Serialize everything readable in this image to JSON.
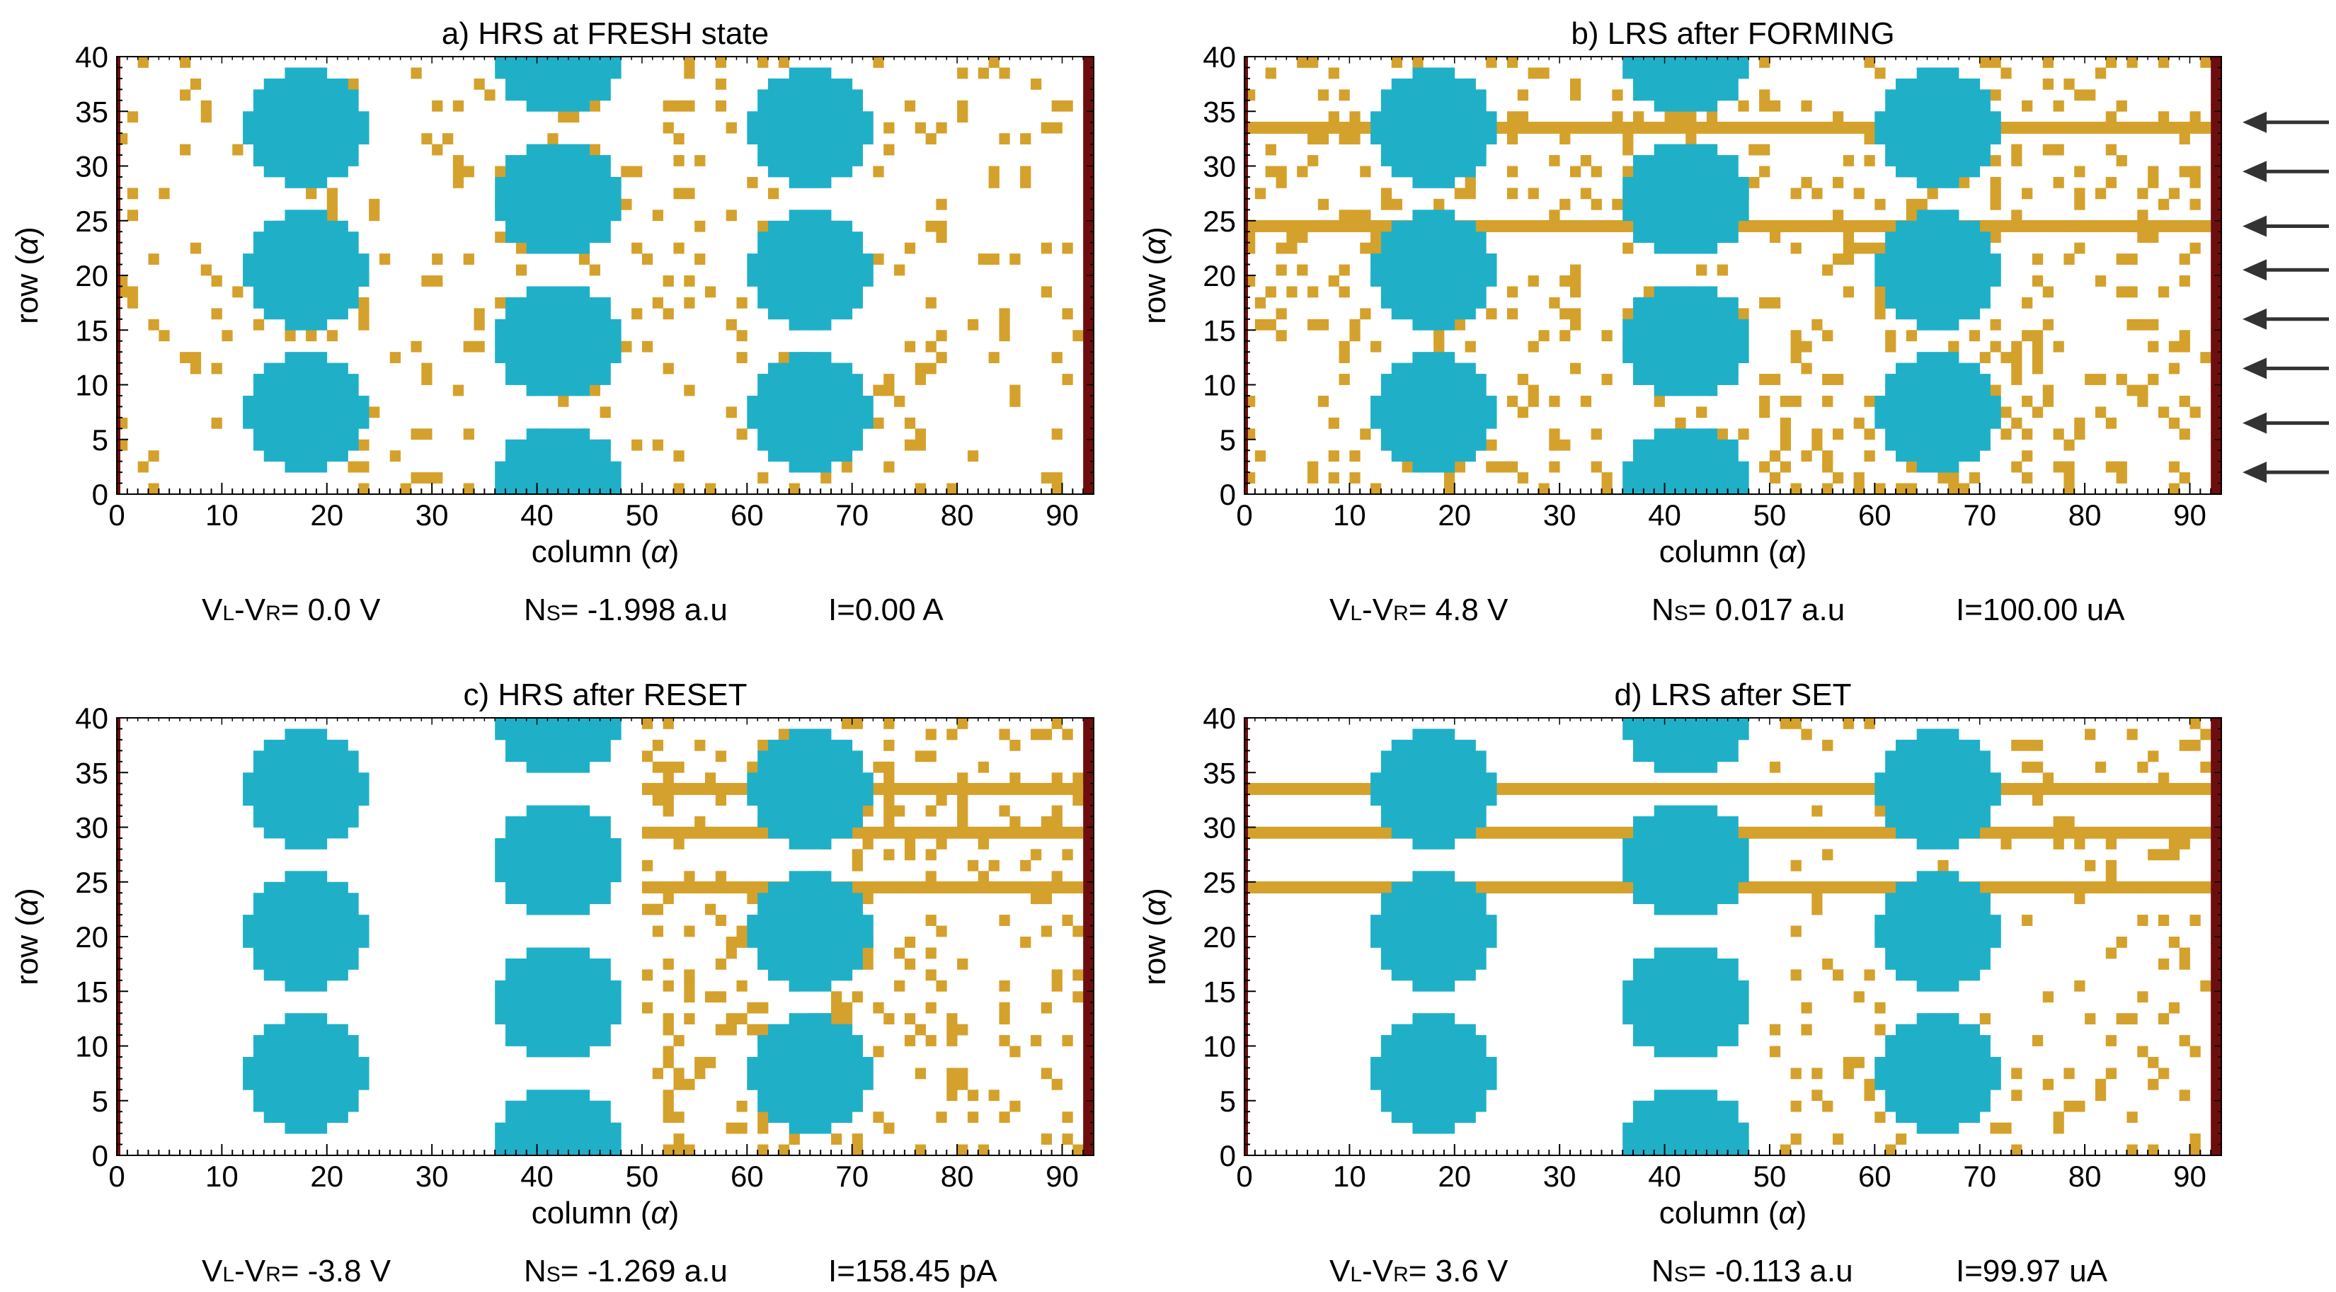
{
  "colors": {
    "background": "#ffffff",
    "molecule": "#1fb0c8",
    "defect": "#d4a12c",
    "electrode": "#6e0d0d",
    "axis": "#000000",
    "arrow": "#333333"
  },
  "chart_data": [
    {
      "type": "heatmap",
      "id": "a",
      "title": "a) HRS at FRESH state",
      "xlabel": "column",
      "ylabel": "row",
      "axis_unit_symbol": "α",
      "xlim": [
        0,
        93
      ],
      "ylim": [
        0,
        40
      ],
      "xticks": [
        0,
        10,
        20,
        30,
        40,
        50,
        60,
        70,
        80,
        90
      ],
      "yticks": [
        0,
        5,
        10,
        15,
        20,
        25,
        30,
        35,
        40
      ],
      "molecule_centers": [
        [
          18,
          7.5
        ],
        [
          18,
          20.5
        ],
        [
          18,
          33.5
        ],
        [
          42,
          1
        ],
        [
          42,
          14
        ],
        [
          42,
          27
        ],
        [
          42,
          40
        ],
        [
          66,
          7.5
        ],
        [
          66,
          20.5
        ],
        [
          66,
          33.5
        ]
      ],
      "filaments": [],
      "right_electrode_column": 92,
      "defect_density": 0.085,
      "defect_region": [
        0,
        91
      ],
      "seed": 11,
      "caption": {
        "v_label": "V",
        "v_sub_l": "L",
        "v_sub_r": "R",
        "v_value": "= 0.0 V",
        "n_label": "N",
        "n_sub": "S",
        "n_value": "= -1.998 a.u",
        "i_text": "I=0.00 A"
      }
    },
    {
      "type": "heatmap",
      "id": "b",
      "title": "b) LRS after FORMING",
      "xlabel": "column",
      "ylabel": "row",
      "axis_unit_symbol": "α",
      "xlim": [
        0,
        93
      ],
      "ylim": [
        0,
        40
      ],
      "xticks": [
        0,
        10,
        20,
        30,
        40,
        50,
        60,
        70,
        80,
        90
      ],
      "yticks": [
        0,
        5,
        10,
        15,
        20,
        25,
        30,
        35,
        40
      ],
      "molecule_centers": [
        [
          18,
          7.5
        ],
        [
          18,
          20.5
        ],
        [
          18,
          33.5
        ],
        [
          42,
          1
        ],
        [
          42,
          14
        ],
        [
          42,
          27
        ],
        [
          42,
          40
        ],
        [
          66,
          7.5
        ],
        [
          66,
          20.5
        ],
        [
          66,
          33.5
        ]
      ],
      "filaments": [
        24.5,
        33.5
      ],
      "right_electrode_column": 92,
      "defect_density": 0.14,
      "defect_region": [
        0,
        91
      ],
      "seed": 23,
      "arrows_rows": [
        2,
        6.5,
        11.5,
        16,
        20.5,
        24.5,
        29.5,
        34
      ],
      "caption": {
        "v_label": "V",
        "v_sub_l": "L",
        "v_sub_r": "R",
        "v_value": "= 4.8 V",
        "n_label": "N",
        "n_sub": "S",
        "n_value": "= 0.017 a.u",
        "i_text": "I=100.00 uA"
      }
    },
    {
      "type": "heatmap",
      "id": "c",
      "title": "c) HRS after RESET",
      "xlabel": "column",
      "ylabel": "row",
      "axis_unit_symbol": "α",
      "xlim": [
        0,
        93
      ],
      "ylim": [
        0,
        40
      ],
      "xticks": [
        0,
        10,
        20,
        30,
        40,
        50,
        60,
        70,
        80,
        90
      ],
      "yticks": [
        0,
        5,
        10,
        15,
        20,
        25,
        30,
        35,
        40
      ],
      "molecule_centers": [
        [
          18,
          7.5
        ],
        [
          18,
          20.5
        ],
        [
          18,
          33.5
        ],
        [
          42,
          1
        ],
        [
          42,
          14
        ],
        [
          42,
          27
        ],
        [
          42,
          40
        ],
        [
          66,
          7.5
        ],
        [
          66,
          20.5
        ],
        [
          66,
          33.5
        ]
      ],
      "filaments": [
        24.5,
        29.5,
        33.5
      ],
      "filament_start_col": 50,
      "right_electrode_column": 92,
      "defect_density": 0.16,
      "defect_region": [
        50,
        91
      ],
      "seed": 37,
      "caption": {
        "v_label": "V",
        "v_sub_l": "L",
        "v_sub_r": "R",
        "v_value": "= -3.8 V",
        "n_label": "N",
        "n_sub": "S",
        "n_value": "= -1.269 a.u",
        "i_text": "I=158.45 pA"
      }
    },
    {
      "type": "heatmap",
      "id": "d",
      "title": "d) LRS after SET",
      "xlabel": "column",
      "ylabel": "row",
      "axis_unit_symbol": "α",
      "xlim": [
        0,
        93
      ],
      "ylim": [
        0,
        40
      ],
      "xticks": [
        0,
        10,
        20,
        30,
        40,
        50,
        60,
        70,
        80,
        90
      ],
      "yticks": [
        0,
        5,
        10,
        15,
        20,
        25,
        30,
        35,
        40
      ],
      "molecule_centers": [
        [
          18,
          7.5
        ],
        [
          18,
          20.5
        ],
        [
          18,
          33.5
        ],
        [
          42,
          1
        ],
        [
          42,
          14
        ],
        [
          42,
          27
        ],
        [
          42,
          40
        ],
        [
          66,
          7.5
        ],
        [
          66,
          20.5
        ],
        [
          66,
          33.5
        ]
      ],
      "filaments": [
        24.5,
        29.5,
        33.5
      ],
      "filament_start_col": 0,
      "right_electrode_column": 92,
      "defect_density": 0.1,
      "defect_region": [
        50,
        91
      ],
      "seed": 53,
      "caption": {
        "v_label": "V",
        "v_sub_l": "L",
        "v_sub_r": "R",
        "v_value": "= 3.6 V",
        "n_label": "N",
        "n_sub": "S",
        "n_value": "= -0.113 a.u",
        "i_text": "I=99.97 uA"
      }
    }
  ]
}
